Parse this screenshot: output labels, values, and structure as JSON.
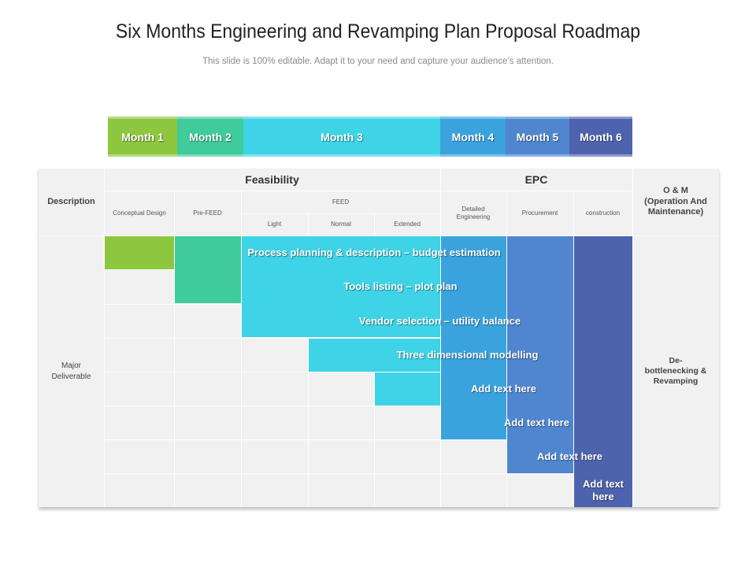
{
  "title": "Six Months Engineering and Revamping Plan Proposal Roadmap",
  "subtitle": "This slide is 100% editable. Adapt it to your need and capture your audience’s attention.",
  "months": [
    {
      "label": "Month 1",
      "color": "#8dc63f"
    },
    {
      "label": "Month 2",
      "color": "#3fcb9b"
    },
    {
      "label": "Month 3",
      "color": "#3ed3e6"
    },
    {
      "label": "Month 4",
      "color": "#3aa3de"
    },
    {
      "label": "Month 5",
      "color": "#4f86cf"
    },
    {
      "label": "Month 6",
      "color": "#4e63ae"
    }
  ],
  "headers": {
    "description": "Description",
    "feasibility": "Feasibility",
    "epc": "EPC",
    "om": "O & M (Operation And Maintenance)",
    "conceptual_design": "Conceptual Design",
    "pre_feed": "Pre-FEED",
    "feed": "FEED",
    "light": "Light",
    "normal": "Normal",
    "extended": "Extended",
    "detailed_engineering": "Detailed Engineering",
    "procurement": "Procurement",
    "construction": "construction"
  },
  "side": {
    "major_deliverable": "Major Deliverable",
    "om_result": "De-bottlenecking & Revamping"
  },
  "deliverables": [
    "Process planning & description – budget estimation",
    "Tools listing – plot plan",
    "Vendor selection – utility balance",
    "Three dimensional modelling",
    "Add text here",
    "Add text here",
    "Add text here",
    "Add text here"
  ]
}
